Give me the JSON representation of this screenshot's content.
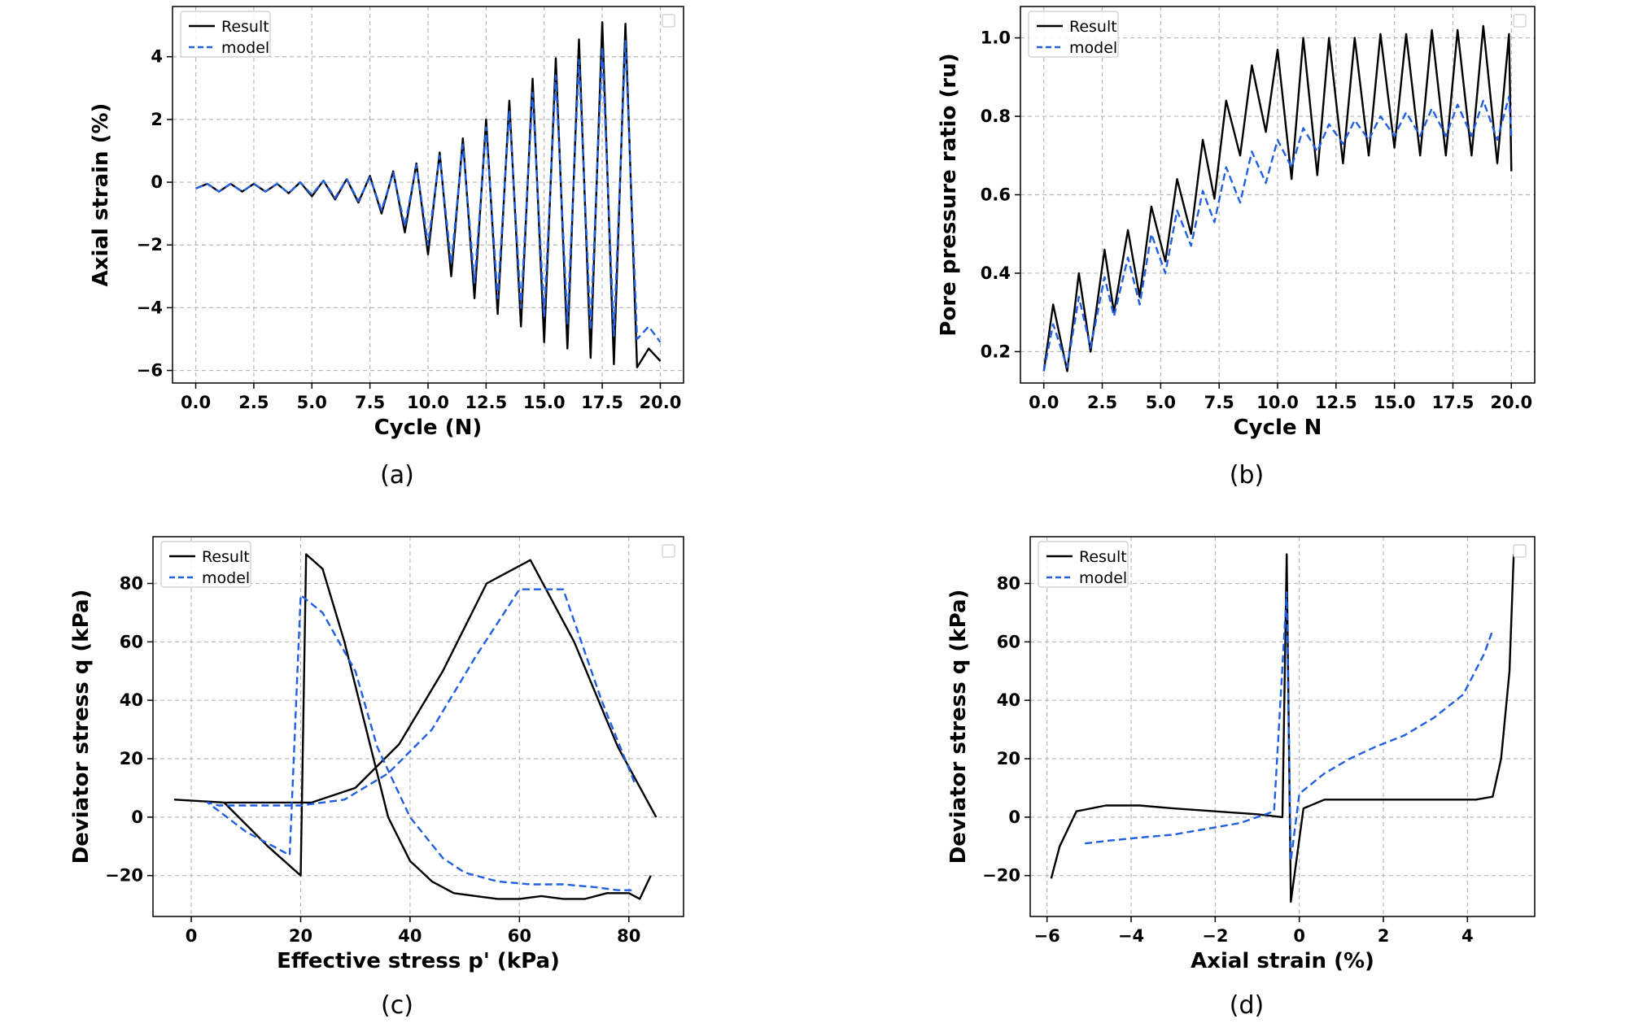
{
  "chart_data": [
    {
      "type": "line",
      "panel": "a",
      "caption": "(a)",
      "title": "",
      "xlabel": "Cycle (N)",
      "ylabel": "Axial strain (%)",
      "xlim": [
        -1.0,
        21.0
      ],
      "ylim": [
        -6.4,
        5.6
      ],
      "xticks": [
        0.0,
        2.5,
        5.0,
        7.5,
        10.0,
        12.5,
        15.0,
        17.5,
        20.0
      ],
      "xtick_labels": [
        "0.0",
        "2.5",
        "5.0",
        "7.5",
        "10.0",
        "12.5",
        "15.0",
        "17.5",
        "20.0"
      ],
      "yticks": [
        -6,
        -4,
        -2,
        0,
        2,
        4
      ],
      "ytick_labels": [
        "−6",
        "−4",
        "−2",
        "0",
        "2",
        "4"
      ],
      "grid": true,
      "legend": {
        "placement": "top-left",
        "entries": [
          "Result",
          "model"
        ]
      },
      "series": [
        {
          "name": "Result",
          "color": "#000000",
          "style": "solid",
          "x": [
            0.0,
            0.5,
            1.0,
            1.5,
            2.0,
            2.5,
            3.0,
            3.5,
            4.0,
            4.5,
            5.0,
            5.5,
            6.0,
            6.5,
            7.0,
            7.5,
            8.0,
            8.5,
            9.0,
            9.5,
            10.0,
            10.5,
            11.0,
            11.5,
            12.0,
            12.5,
            13.0,
            13.5,
            14.0,
            14.5,
            15.0,
            15.5,
            16.0,
            16.5,
            17.0,
            17.5,
            18.0,
            18.5,
            19.0,
            19.5,
            20.0
          ],
          "y": [
            -0.2,
            -0.05,
            -0.3,
            -0.05,
            -0.3,
            -0.05,
            -0.3,
            -0.05,
            -0.35,
            0.0,
            -0.45,
            0.05,
            -0.55,
            0.1,
            -0.65,
            0.2,
            -1.0,
            0.35,
            -1.6,
            0.6,
            -2.3,
            0.95,
            -3.0,
            1.4,
            -3.7,
            2.0,
            -4.2,
            2.6,
            -4.6,
            3.3,
            -5.1,
            3.95,
            -5.3,
            4.55,
            -5.6,
            5.1,
            -5.8,
            5.05,
            -5.9,
            -5.3,
            -5.7
          ]
        },
        {
          "name": "model",
          "color": "#1f5fe0",
          "style": "dashed",
          "x": [
            0.0,
            0.5,
            1.0,
            1.5,
            2.0,
            2.5,
            3.0,
            3.5,
            4.0,
            4.5,
            5.0,
            5.5,
            6.0,
            6.5,
            7.0,
            7.5,
            8.0,
            8.5,
            9.0,
            9.5,
            10.0,
            10.5,
            11.0,
            11.5,
            12.0,
            12.5,
            13.0,
            13.5,
            14.0,
            14.5,
            15.0,
            15.5,
            16.0,
            16.5,
            17.0,
            17.5,
            18.0,
            18.5,
            19.0,
            19.5,
            20.0
          ],
          "y": [
            -0.2,
            -0.05,
            -0.3,
            -0.05,
            -0.3,
            -0.05,
            -0.3,
            -0.05,
            -0.35,
            0.0,
            -0.4,
            0.05,
            -0.5,
            0.1,
            -0.6,
            0.15,
            -0.9,
            0.3,
            -1.4,
            0.55,
            -2.0,
            0.85,
            -2.6,
            1.2,
            -3.2,
            1.75,
            -3.7,
            2.3,
            -4.0,
            2.85,
            -4.3,
            3.4,
            -4.5,
            3.9,
            -4.7,
            4.3,
            -4.9,
            4.5,
            -5.0,
            -4.6,
            -5.1
          ]
        }
      ]
    },
    {
      "type": "line",
      "panel": "b",
      "caption": "(b)",
      "title": "",
      "xlabel": "Cycle N",
      "ylabel": "Pore pressure ratio (ru)",
      "xlim": [
        -1.0,
        21.0
      ],
      "ylim": [
        0.12,
        1.08
      ],
      "xticks": [
        0.0,
        2.5,
        5.0,
        7.5,
        10.0,
        12.5,
        15.0,
        17.5,
        20.0
      ],
      "xtick_labels": [
        "0.0",
        "2.5",
        "5.0",
        "7.5",
        "10.0",
        "12.5",
        "15.0",
        "17.5",
        "20.0"
      ],
      "yticks": [
        0.2,
        0.4,
        0.6,
        0.8,
        1.0
      ],
      "ytick_labels": [
        "0.2",
        "0.4",
        "0.6",
        "0.8",
        "1.0"
      ],
      "grid": true,
      "legend": {
        "placement": "top-left",
        "entries": [
          "Result",
          "model"
        ]
      },
      "series": [
        {
          "name": "Result",
          "color": "#000000",
          "style": "solid",
          "x": [
            0.0,
            0.4,
            1.0,
            1.5,
            2.0,
            2.6,
            3.0,
            3.6,
            4.1,
            4.6,
            5.2,
            5.7,
            6.3,
            6.8,
            7.3,
            7.8,
            8.4,
            8.9,
            9.5,
            10.0,
            10.6,
            11.1,
            11.7,
            12.2,
            12.8,
            13.3,
            13.9,
            14.4,
            15.0,
            15.5,
            16.1,
            16.6,
            17.2,
            17.7,
            18.3,
            18.8,
            19.4,
            19.9,
            20.0
          ],
          "y": [
            0.15,
            0.32,
            0.15,
            0.4,
            0.2,
            0.46,
            0.3,
            0.51,
            0.34,
            0.57,
            0.43,
            0.64,
            0.5,
            0.74,
            0.59,
            0.84,
            0.7,
            0.93,
            0.76,
            0.97,
            0.64,
            1.0,
            0.65,
            1.0,
            0.68,
            1.0,
            0.7,
            1.01,
            0.72,
            1.01,
            0.7,
            1.02,
            0.7,
            1.02,
            0.7,
            1.03,
            0.68,
            1.01,
            0.66
          ]
        },
        {
          "name": "model",
          "color": "#1f5fe0",
          "style": "dashed",
          "x": [
            0.0,
            0.4,
            1.0,
            1.5,
            2.0,
            2.6,
            3.0,
            3.6,
            4.1,
            4.6,
            5.2,
            5.7,
            6.3,
            6.8,
            7.3,
            7.8,
            8.4,
            8.9,
            9.5,
            10.0,
            10.6,
            11.1,
            11.7,
            12.2,
            12.8,
            13.3,
            13.9,
            14.4,
            15.0,
            15.5,
            16.1,
            16.6,
            17.2,
            17.7,
            18.3,
            18.8,
            19.4,
            19.9,
            20.0
          ],
          "y": [
            0.15,
            0.27,
            0.16,
            0.34,
            0.21,
            0.39,
            0.29,
            0.44,
            0.32,
            0.5,
            0.4,
            0.56,
            0.47,
            0.61,
            0.53,
            0.67,
            0.58,
            0.71,
            0.63,
            0.74,
            0.67,
            0.77,
            0.71,
            0.78,
            0.73,
            0.79,
            0.74,
            0.8,
            0.75,
            0.81,
            0.75,
            0.82,
            0.75,
            0.83,
            0.75,
            0.84,
            0.74,
            0.85,
            0.75
          ]
        }
      ]
    },
    {
      "type": "line",
      "panel": "c",
      "caption": "(c)",
      "title": "",
      "xlabel": "Effective stress p' (kPa)",
      "ylabel": "Deviator stress q (kPa)",
      "xlim": [
        -7,
        90
      ],
      "ylim": [
        -34,
        96
      ],
      "xticks": [
        0,
        20,
        40,
        60,
        80
      ],
      "xtick_labels": [
        "0",
        "20",
        "40",
        "60",
        "80"
      ],
      "yticks": [
        -20,
        0,
        20,
        40,
        60,
        80
      ],
      "ytick_labels": [
        "−20",
        "0",
        "20",
        "40",
        "60",
        "80"
      ],
      "grid": true,
      "legend": {
        "placement": "top-left",
        "entries": [
          "Result",
          "model"
        ]
      },
      "series": [
        {
          "name": "Result",
          "color": "#000000",
          "style": "solid",
          "x": [
            85,
            78,
            70,
            62,
            54,
            46,
            38,
            30,
            22,
            14,
            6,
            -3,
            6,
            14,
            20,
            21,
            24,
            28,
            32,
            36,
            40,
            44,
            48,
            52,
            56,
            60,
            64,
            68,
            72,
            76,
            80,
            82,
            84
          ],
          "y": [
            0,
            24,
            60,
            88,
            80,
            50,
            25,
            10,
            5,
            5,
            5,
            6,
            5,
            -10,
            -20,
            90,
            85,
            60,
            30,
            0,
            -15,
            -22,
            -26,
            -27,
            -28,
            -28,
            -27,
            -28,
            -28,
            -26,
            -26,
            -28,
            -20
          ]
        },
        {
          "name": "model",
          "color": "#1f5fe0",
          "style": "dashed",
          "x": [
            81,
            75,
            68,
            60,
            52,
            44,
            36,
            28,
            20,
            12,
            5,
            3,
            10,
            18,
            20,
            24,
            30,
            34,
            40,
            46,
            50,
            56,
            62,
            68,
            74,
            78,
            81
          ],
          "y": [
            12,
            40,
            78,
            78,
            55,
            30,
            15,
            6,
            4,
            4,
            4,
            5,
            -5,
            -13,
            76,
            70,
            50,
            24,
            0,
            -14,
            -19,
            -22,
            -23,
            -23,
            -24,
            -25,
            -25
          ]
        }
      ]
    },
    {
      "type": "line",
      "panel": "d",
      "caption": "(d)",
      "title": "",
      "xlabel": "Axial strain (%)",
      "ylabel": "Deviator stress q (kPa)",
      "xlim": [
        -6.4,
        5.6
      ],
      "ylim": [
        -34,
        96
      ],
      "xticks": [
        -6,
        -4,
        -2,
        0,
        2,
        4
      ],
      "xtick_labels": [
        "−6",
        "−4",
        "−2",
        "0",
        "2",
        "4"
      ],
      "yticks": [
        -20,
        0,
        20,
        40,
        60,
        80
      ],
      "ytick_labels": [
        "−20",
        "0",
        "20",
        "40",
        "60",
        "80"
      ],
      "grid": true,
      "legend": {
        "placement": "top-left",
        "entries": [
          "Result",
          "model"
        ]
      },
      "series": [
        {
          "name": "Result",
          "color": "#000000",
          "style": "solid",
          "x": [
            -5.9,
            -5.7,
            -5.3,
            -4.6,
            -3.8,
            -3.0,
            -2.0,
            -1.0,
            -0.4,
            -0.3,
            -0.2,
            0.1,
            0.6,
            1.2,
            2.0,
            2.8,
            3.6,
            4.2,
            4.6,
            4.8,
            5.0,
            5.1
          ],
          "y": [
            -21,
            -10,
            2,
            4,
            4,
            3,
            2,
            1,
            0,
            90,
            -29,
            3,
            6,
            6,
            6,
            6,
            6,
            6,
            7,
            20,
            50,
            90
          ]
        },
        {
          "name": "model",
          "color": "#1f5fe0",
          "style": "dashed",
          "x": [
            -5.1,
            -4.5,
            -3.8,
            -3.0,
            -2.2,
            -1.4,
            -0.6,
            -0.3,
            -0.2,
            0.0,
            0.6,
            1.2,
            1.8,
            2.5,
            3.2,
            3.9,
            4.4,
            4.6
          ],
          "y": [
            -9,
            -8,
            -7,
            -6,
            -4,
            -2,
            2,
            77,
            -15,
            8,
            15,
            20,
            24,
            28,
            34,
            42,
            56,
            64
          ]
        }
      ]
    }
  ]
}
